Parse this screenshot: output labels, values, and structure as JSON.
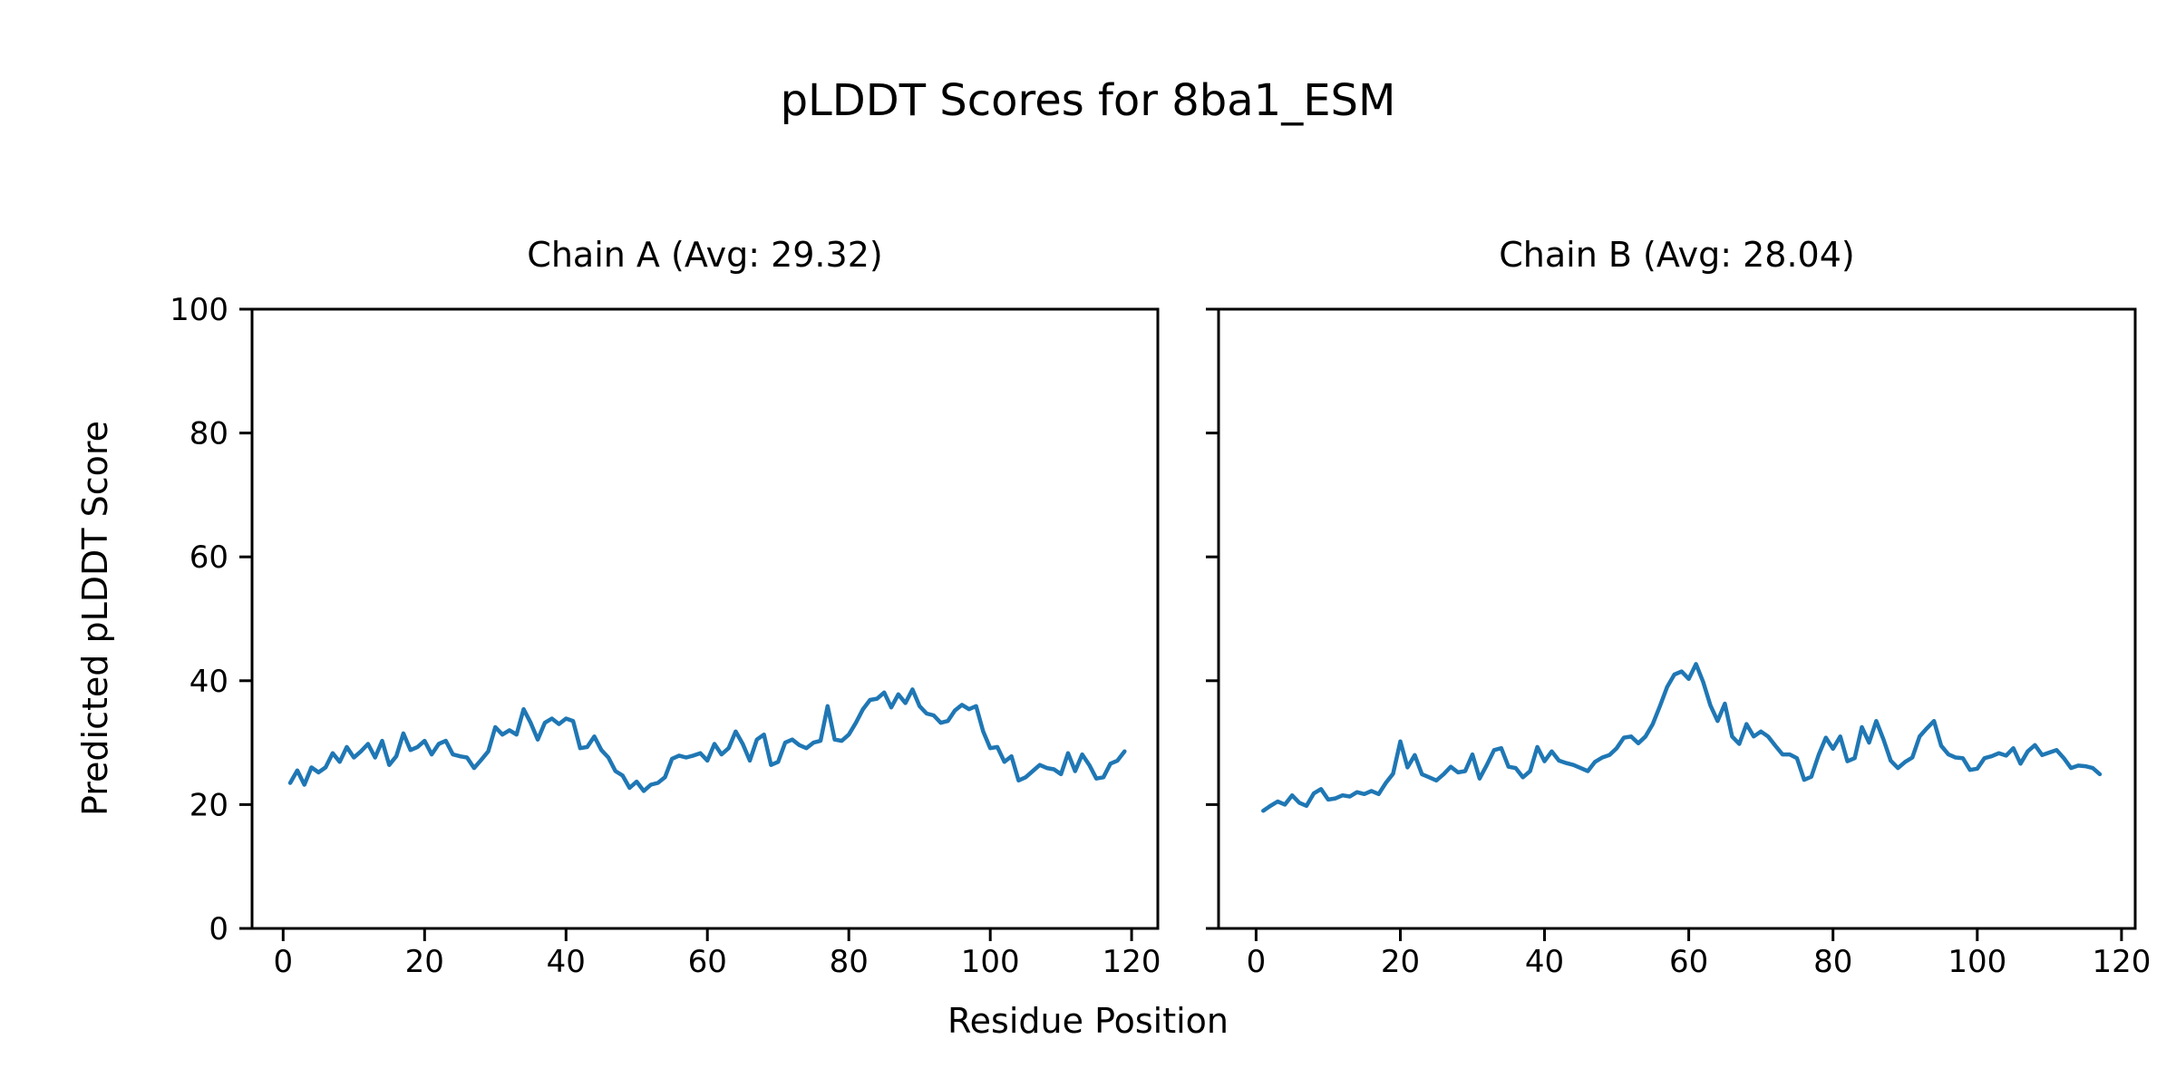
{
  "figure": {
    "title": "pLDDT Scores for 8ba1_ESM",
    "xlabel": "Residue Position",
    "ylabel": "Predicted pLDDT Score",
    "background_color": "#ffffff",
    "text_color": "#000000"
  },
  "chart_data": {
    "type": "line",
    "title": "pLDDT Scores for 8ba1_ESM",
    "xlabel": "Residue Position",
    "ylabel": "Predicted pLDDT Score",
    "grid": false,
    "legend": "none",
    "line_color": "#1f77b4",
    "axis_color": "#000000",
    "subplots": [
      {
        "title": "Chain A (Avg: 29.32)",
        "average": 29.32,
        "xlim": [
          -4.4,
          123.7
        ],
        "ylim": [
          0,
          100
        ],
        "xticks": [
          0,
          20,
          40,
          60,
          80,
          100,
          120
        ],
        "yticks": [
          0,
          20,
          40,
          60,
          80,
          100
        ],
        "show_ytick_labels": true,
        "line_name": "chain-a-plddt-line",
        "x_start": 1,
        "values": [
          23.5,
          25.5,
          23.2,
          26.0,
          25.2,
          26.0,
          28.3,
          26.9,
          29.3,
          27.6,
          28.6,
          29.8,
          27.6,
          30.3,
          26.4,
          27.8,
          31.5,
          28.8,
          29.3,
          30.3,
          28.1,
          29.8,
          30.3,
          28.1,
          27.8,
          27.6,
          25.9,
          27.2,
          28.6,
          32.5,
          31.3,
          32.0,
          31.3,
          35.4,
          33.2,
          30.5,
          33.2,
          33.9,
          33.0,
          33.9,
          33.5,
          29.1,
          29.3,
          31.0,
          28.8,
          27.6,
          25.4,
          24.7,
          22.7,
          23.7,
          22.2,
          23.2,
          23.5,
          24.4,
          27.4,
          27.9,
          27.6,
          27.9,
          28.3,
          27.1,
          29.8,
          28.1,
          29.1,
          31.8,
          29.8,
          27.1,
          30.5,
          31.3,
          26.4,
          26.9,
          30.0,
          30.5,
          29.6,
          29.1,
          30.0,
          30.3,
          35.9,
          30.5,
          30.3,
          31.3,
          33.2,
          35.4,
          36.9,
          37.1,
          38.1,
          35.7,
          37.8,
          36.4,
          38.6,
          35.9,
          34.7,
          34.4,
          33.2,
          33.5,
          35.2,
          36.1,
          35.4,
          35.9,
          31.8,
          29.1,
          29.3,
          26.9,
          27.8,
          23.9,
          24.4,
          25.4,
          26.4,
          25.9,
          25.7,
          24.9,
          28.3,
          25.4,
          28.1,
          26.4,
          24.2,
          24.4,
          26.6,
          27.1,
          28.6
        ]
      },
      {
        "title": "Chain B (Avg: 28.04)",
        "average": 28.04,
        "xlim": [
          -5.2,
          121.9
        ],
        "ylim": [
          0,
          100
        ],
        "xticks": [
          0,
          20,
          40,
          60,
          80,
          100,
          120
        ],
        "yticks": [
          0,
          20,
          40,
          60,
          80,
          100
        ],
        "show_ytick_labels": false,
        "line_name": "chain-b-plddt-line",
        "x_start": 1,
        "values": [
          19.0,
          19.8,
          20.5,
          20.0,
          21.5,
          20.3,
          19.8,
          21.8,
          22.5,
          20.8,
          21.0,
          21.5,
          21.3,
          22.0,
          21.7,
          22.2,
          21.7,
          23.5,
          25.0,
          30.2,
          26.0,
          28.0,
          24.9,
          24.4,
          23.9,
          24.9,
          26.1,
          25.2,
          25.4,
          28.1,
          24.2,
          26.4,
          28.8,
          29.1,
          26.1,
          25.9,
          24.4,
          25.4,
          29.3,
          27.0,
          28.6,
          27.1,
          26.7,
          26.4,
          25.9,
          25.4,
          26.9,
          27.6,
          28.0,
          29.1,
          30.8,
          31.0,
          29.9,
          31.0,
          33.0,
          35.9,
          39.0,
          41.0,
          41.5,
          40.3,
          42.7,
          39.8,
          36.0,
          33.5,
          36.3,
          31.0,
          29.8,
          33.0,
          31.0,
          31.8,
          31.0,
          29.5,
          28.1,
          28.1,
          27.5,
          24.0,
          24.5,
          28.0,
          30.8,
          29.0,
          31.0,
          27.0,
          27.5,
          32.5,
          30.0,
          33.5,
          30.5,
          27.1,
          25.9,
          26.9,
          27.6,
          31.0,
          32.3,
          33.5,
          29.5,
          28.1,
          27.6,
          27.5,
          25.6,
          25.8,
          27.5,
          27.8,
          28.3,
          27.9,
          29.1,
          26.6,
          28.6,
          29.6,
          28.0,
          28.4,
          28.8,
          27.5,
          25.9,
          26.3,
          26.2,
          25.9,
          24.9
        ]
      }
    ]
  }
}
